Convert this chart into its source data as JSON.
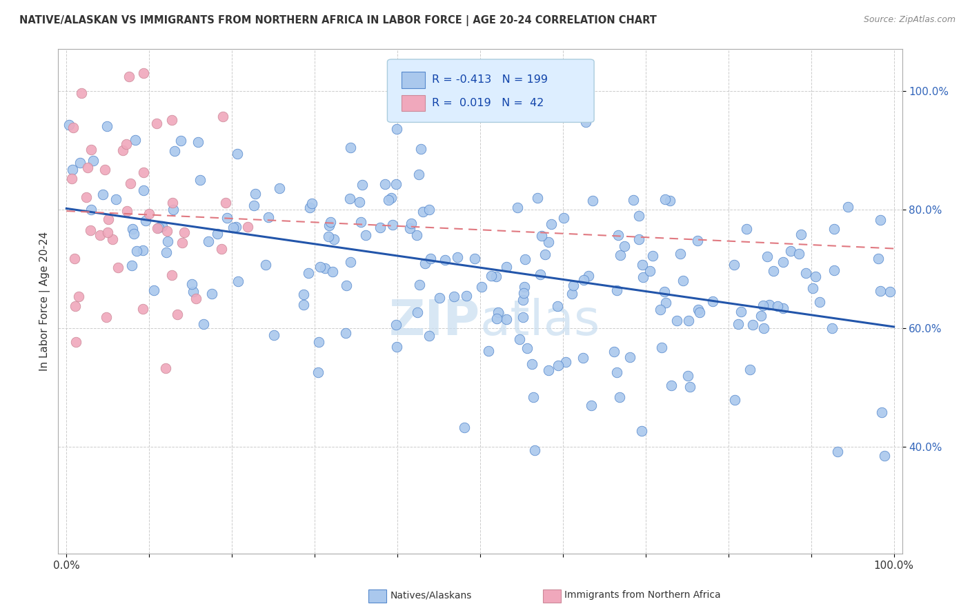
{
  "title": "NATIVE/ALASKAN VS IMMIGRANTS FROM NORTHERN AFRICA IN LABOR FORCE | AGE 20-24 CORRELATION CHART",
  "source": "Source: ZipAtlas.com",
  "ylabel": "In Labor Force | Age 20-24",
  "blue_R": -0.413,
  "blue_N": 199,
  "pink_R": 0.019,
  "pink_N": 42,
  "blue_color": "#aac8ed",
  "pink_color": "#f0a8bc",
  "blue_line_color": "#2255aa",
  "pink_line_color": "#e07880",
  "blue_edge_color": "#5588cc",
  "pink_edge_color": "#cc8898",
  "legend_bg_color": "#ddeeff",
  "legend_border_color": "#aaccdd",
  "watermark_color": "#c8ddf0",
  "ytick_color": "#3366bb",
  "xtick_color": "#333333",
  "grid_color": "#cccccc",
  "title_color": "#333333",
  "source_color": "#888888",
  "ylabel_color": "#333333"
}
